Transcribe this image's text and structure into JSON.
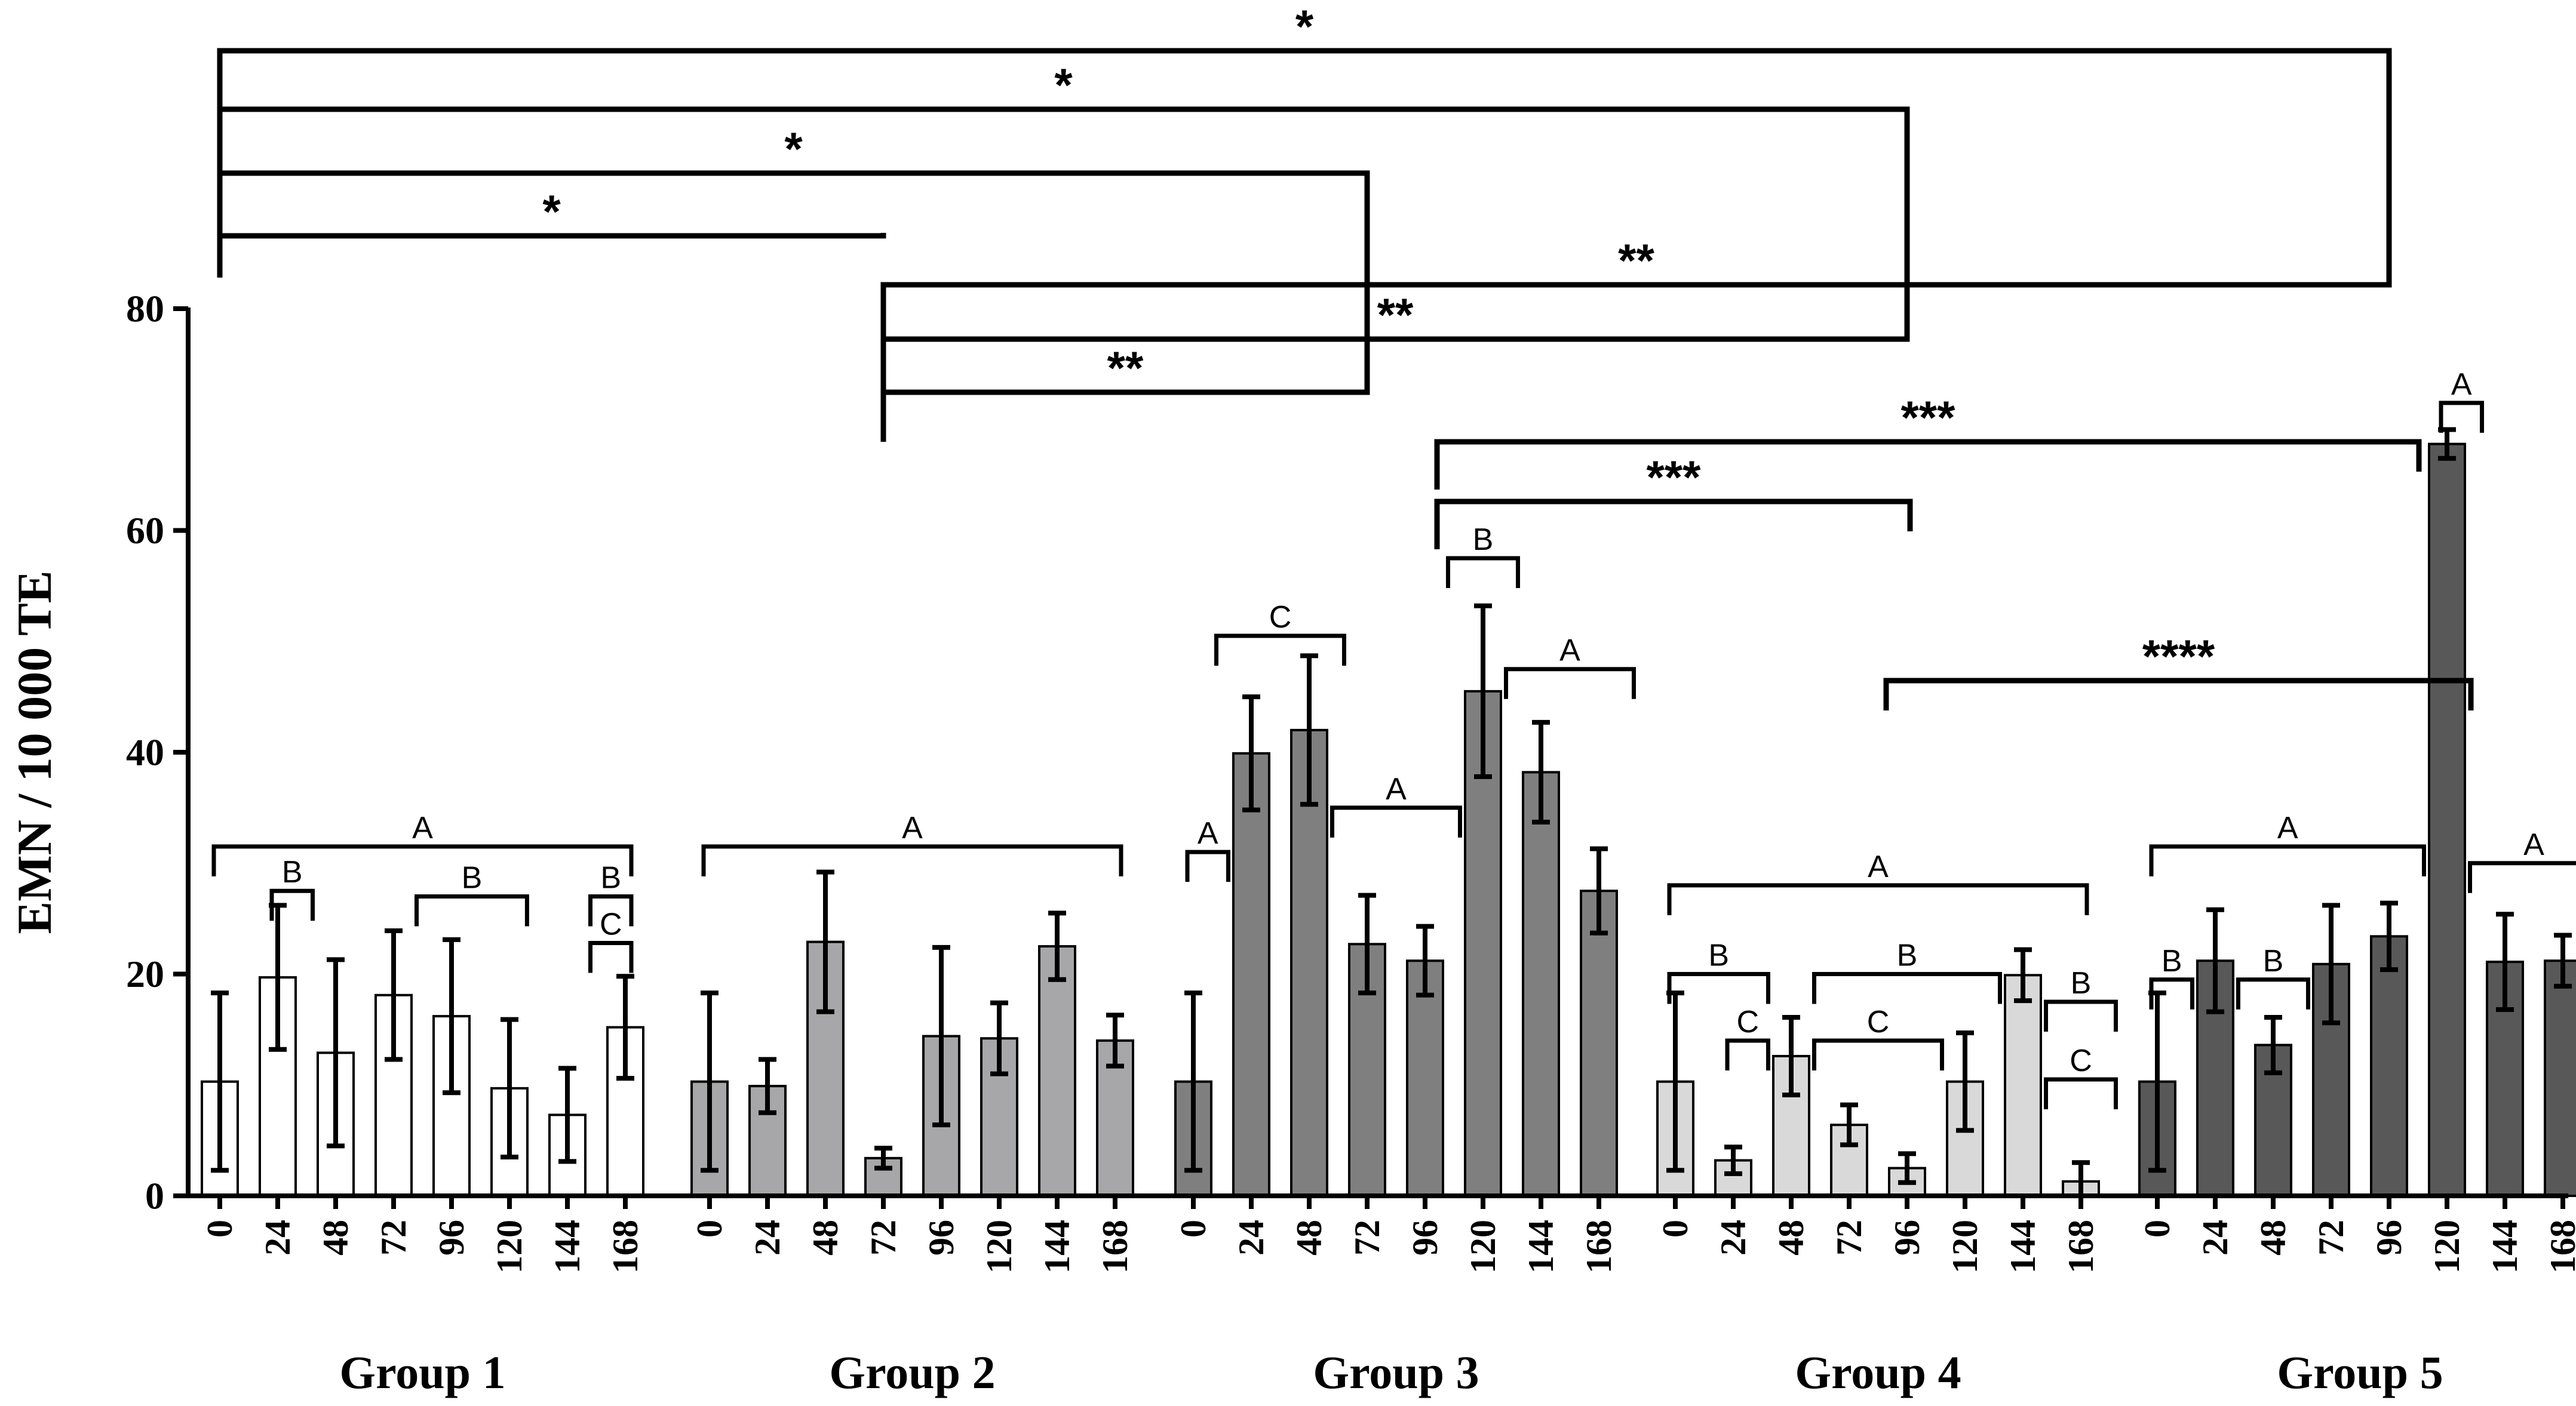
{
  "chart_data": {
    "type": "bar",
    "ylabel": "EMN / 10 000 TE",
    "ylim": [
      0,
      80
    ],
    "yticks": [
      "0",
      "20",
      "40",
      "60",
      "80"
    ],
    "groups": [
      {
        "name": "Group 1",
        "color": "#ffffff",
        "categories": [
          "0",
          "24",
          "48",
          "72",
          "96",
          "120",
          "144",
          "168"
        ],
        "values": [
          10.3,
          19.7,
          12.9,
          18.1,
          16.2,
          9.7,
          7.3,
          15.2
        ],
        "errors": [
          8.0,
          6.5,
          8.4,
          5.8,
          6.9,
          6.2,
          4.2,
          4.6
        ]
      },
      {
        "name": "Group 2",
        "color": "#a7a7a9",
        "categories": [
          "0",
          "24",
          "48",
          "72",
          "96",
          "120",
          "144",
          "168"
        ],
        "values": [
          10.3,
          9.9,
          22.9,
          3.4,
          14.4,
          14.2,
          22.5,
          14.0
        ],
        "errors": [
          8.0,
          2.4,
          6.3,
          0.9,
          8.0,
          3.2,
          3.0,
          2.3
        ]
      },
      {
        "name": "Group 3",
        "color": "#7f7f80",
        "categories": [
          "0",
          "24",
          "48",
          "72",
          "96",
          "120",
          "144",
          "168"
        ],
        "values": [
          10.3,
          39.9,
          42.0,
          22.7,
          21.2,
          45.5,
          38.2,
          27.5
        ],
        "errors": [
          8.0,
          5.1,
          6.7,
          4.4,
          3.1,
          7.7,
          4.5,
          3.8
        ]
      },
      {
        "name": "Group 4",
        "color": "#d9d9d9",
        "categories": [
          "0",
          "24",
          "48",
          "72",
          "96",
          "120",
          "144",
          "168"
        ],
        "values": [
          10.3,
          3.2,
          12.6,
          6.4,
          2.5,
          10.3,
          19.9,
          1.3
        ],
        "errors": [
          8.0,
          1.2,
          3.5,
          1.8,
          1.3,
          4.4,
          2.3,
          1.7
        ]
      },
      {
        "name": "Group 5",
        "color": "#585858",
        "categories": [
          "0",
          "24",
          "48",
          "72",
          "96",
          "120",
          "144",
          "168"
        ],
        "values": [
          10.3,
          21.2,
          13.6,
          20.9,
          23.4,
          67.8,
          21.1,
          21.2
        ],
        "errors": [
          8.0,
          4.6,
          2.5,
          5.3,
          3.0,
          1.3,
          4.3,
          2.3
        ]
      }
    ],
    "significance": [
      {
        "label": "*",
        "from": [
          0,
          0
        ],
        "to": [
          4,
          4
        ]
      },
      {
        "label": "*",
        "from": [
          0,
          0
        ],
        "to": [
          3,
          4
        ]
      },
      {
        "label": "*",
        "from": [
          0,
          0
        ],
        "to": [
          2,
          3
        ]
      },
      {
        "label": "*",
        "from": [
          0,
          0
        ],
        "to": [
          1,
          3
        ]
      },
      {
        "label": "**",
        "from": [
          1,
          3
        ],
        "to": [
          4,
          4
        ]
      },
      {
        "label": "**",
        "from": [
          1,
          3
        ],
        "to": [
          3,
          4
        ]
      },
      {
        "label": "**",
        "from": [
          1,
          3
        ],
        "to": [
          2,
          3
        ]
      },
      {
        "label": "***",
        "from": [
          2,
          4
        ],
        "to": [
          4,
          4
        ]
      },
      {
        "label": "***",
        "from": [
          2,
          4
        ],
        "to": [
          3,
          4
        ]
      },
      {
        "label": "****",
        "from": [
          3,
          4
        ],
        "to": [
          4,
          5
        ]
      }
    ],
    "letters": [
      {
        "g": 0,
        "label": "A",
        "from": 0,
        "to": 7,
        "level": 31.5
      },
      {
        "g": 0,
        "label": "B",
        "from": 1,
        "to": 1.5,
        "level": 27.5
      },
      {
        "g": 0,
        "label": "B",
        "from": 3.5,
        "to": 5.2,
        "level": 27.0
      },
      {
        "g": 0,
        "label": "B",
        "from": 6.5,
        "to": 7,
        "level": 27.0
      },
      {
        "g": 0,
        "label": "C",
        "from": 6.5,
        "to": 7,
        "level": 22.8
      },
      {
        "g": 1,
        "label": "A",
        "from": 0,
        "to": 7,
        "level": 31.5
      },
      {
        "g": 2,
        "label": "A",
        "from": 0,
        "to": 0.5,
        "level": 31.0
      },
      {
        "g": 2,
        "label": "C",
        "from": 0.5,
        "to": 2.5,
        "level": 50.5
      },
      {
        "g": 2,
        "label": "A",
        "from": 2.5,
        "to": 4.5,
        "level": 35.0
      },
      {
        "g": 2,
        "label": "B",
        "from": 4.5,
        "to": 5.5,
        "level": 57.5
      },
      {
        "g": 2,
        "label": "A",
        "from": 5.5,
        "to": 7.5,
        "level": 47.5
      },
      {
        "g": 3,
        "label": "A",
        "from": 0,
        "to": 7,
        "level": 28.0
      },
      {
        "g": 3,
        "label": "B",
        "from": 0,
        "to": 1.5,
        "level": 20.0
      },
      {
        "g": 3,
        "label": "C",
        "from": 1,
        "to": 1.5,
        "level": 14.0
      },
      {
        "g": 3,
        "label": "B",
        "from": 2.5,
        "to": 5.5,
        "level": 20.0
      },
      {
        "g": 3,
        "label": "C",
        "from": 2.5,
        "to": 4.5,
        "level": 14.0
      },
      {
        "g": 3,
        "label": "B",
        "from": 6.5,
        "to": 7.5,
        "level": 17.5
      },
      {
        "g": 3,
        "label": "C",
        "from": 6.5,
        "to": 7.5,
        "level": 10.5
      },
      {
        "g": 4,
        "label": "A",
        "from": 0,
        "to": 4.5,
        "level": 31.5
      },
      {
        "g": 4,
        "label": "B",
        "from": 0,
        "to": 0.5,
        "level": 19.5
      },
      {
        "g": 4,
        "label": "B",
        "from": 1.5,
        "to": 2.5,
        "level": 19.5
      },
      {
        "g": 4,
        "label": "A",
        "from": 5,
        "to": 5.5,
        "level": 71.5
      },
      {
        "g": 4,
        "label": "A",
        "from": 5.5,
        "to": 7.5,
        "level": 30.0
      }
    ]
  }
}
